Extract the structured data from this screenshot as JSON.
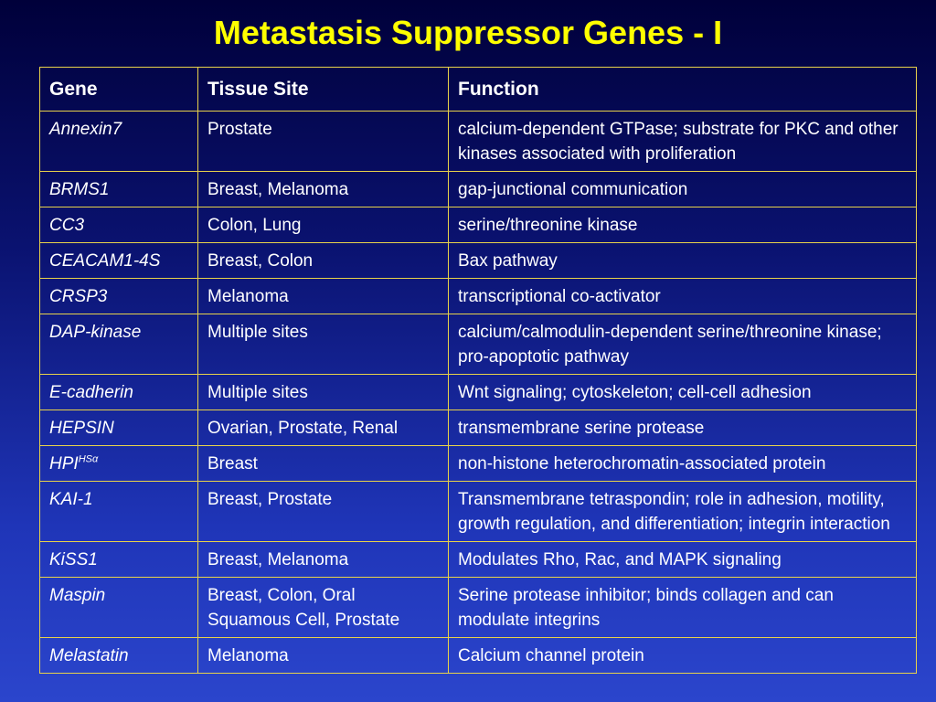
{
  "title": "Metastasis Suppressor Genes - I",
  "headers": {
    "gene": "Gene",
    "tissue": "Tissue Site",
    "function": "Function"
  },
  "rows": [
    {
      "gene": "Annexin7",
      "sup": "",
      "tissue": "Prostate",
      "function": "calcium-dependent GTPase; substrate for PKC and other kinases associated with proliferation"
    },
    {
      "gene": "BRMS1",
      "sup": "",
      "tissue": "Breast, Melanoma",
      "function": "gap-junctional communication"
    },
    {
      "gene": "CC3",
      "sup": "",
      "tissue": "Colon, Lung",
      "function": "serine/threonine kinase"
    },
    {
      "gene": "CEACAM1-4S",
      "sup": "",
      "tissue": "Breast, Colon",
      "function": "Bax pathway"
    },
    {
      "gene": "CRSP3",
      "sup": "",
      "tissue": "Melanoma",
      "function": "transcriptional co-activator"
    },
    {
      "gene": "DAP-kinase",
      "sup": "",
      "tissue": "Multiple sites",
      "function": "calcium/calmodulin-dependent serine/threonine kinase; pro-apoptotic pathway"
    },
    {
      "gene": "E-cadherin",
      "sup": "",
      "tissue": "Multiple sites",
      "function": "Wnt signaling; cytoskeleton; cell-cell adhesion"
    },
    {
      "gene": "HEPSIN",
      "sup": "",
      "tissue": "Ovarian, Prostate, Renal",
      "function": "transmembrane serine protease"
    },
    {
      "gene": "HPI",
      "sup": "HSα",
      "tissue": "Breast",
      "function": "non-histone heterochromatin-associated protein"
    },
    {
      "gene": "KAI-1",
      "sup": "",
      "tissue": "Breast, Prostate",
      "function": "Transmembrane tetraspondin; role in adhesion, motility, growth regulation, and differentiation; integrin interaction"
    },
    {
      "gene": "KiSS1",
      "sup": "",
      "tissue": "Breast, Melanoma",
      "function": "Modulates Rho, Rac, and MAPK signaling"
    },
    {
      "gene": "Maspin",
      "sup": "",
      "tissue": "Breast, Colon, Oral Squamous Cell, Prostate",
      "function": "Serine protease inhibitor; binds collagen and can modulate integrins"
    },
    {
      "gene": "Melastatin",
      "sup": "",
      "tissue": "Melanoma",
      "function": "Calcium channel protein"
    }
  ]
}
